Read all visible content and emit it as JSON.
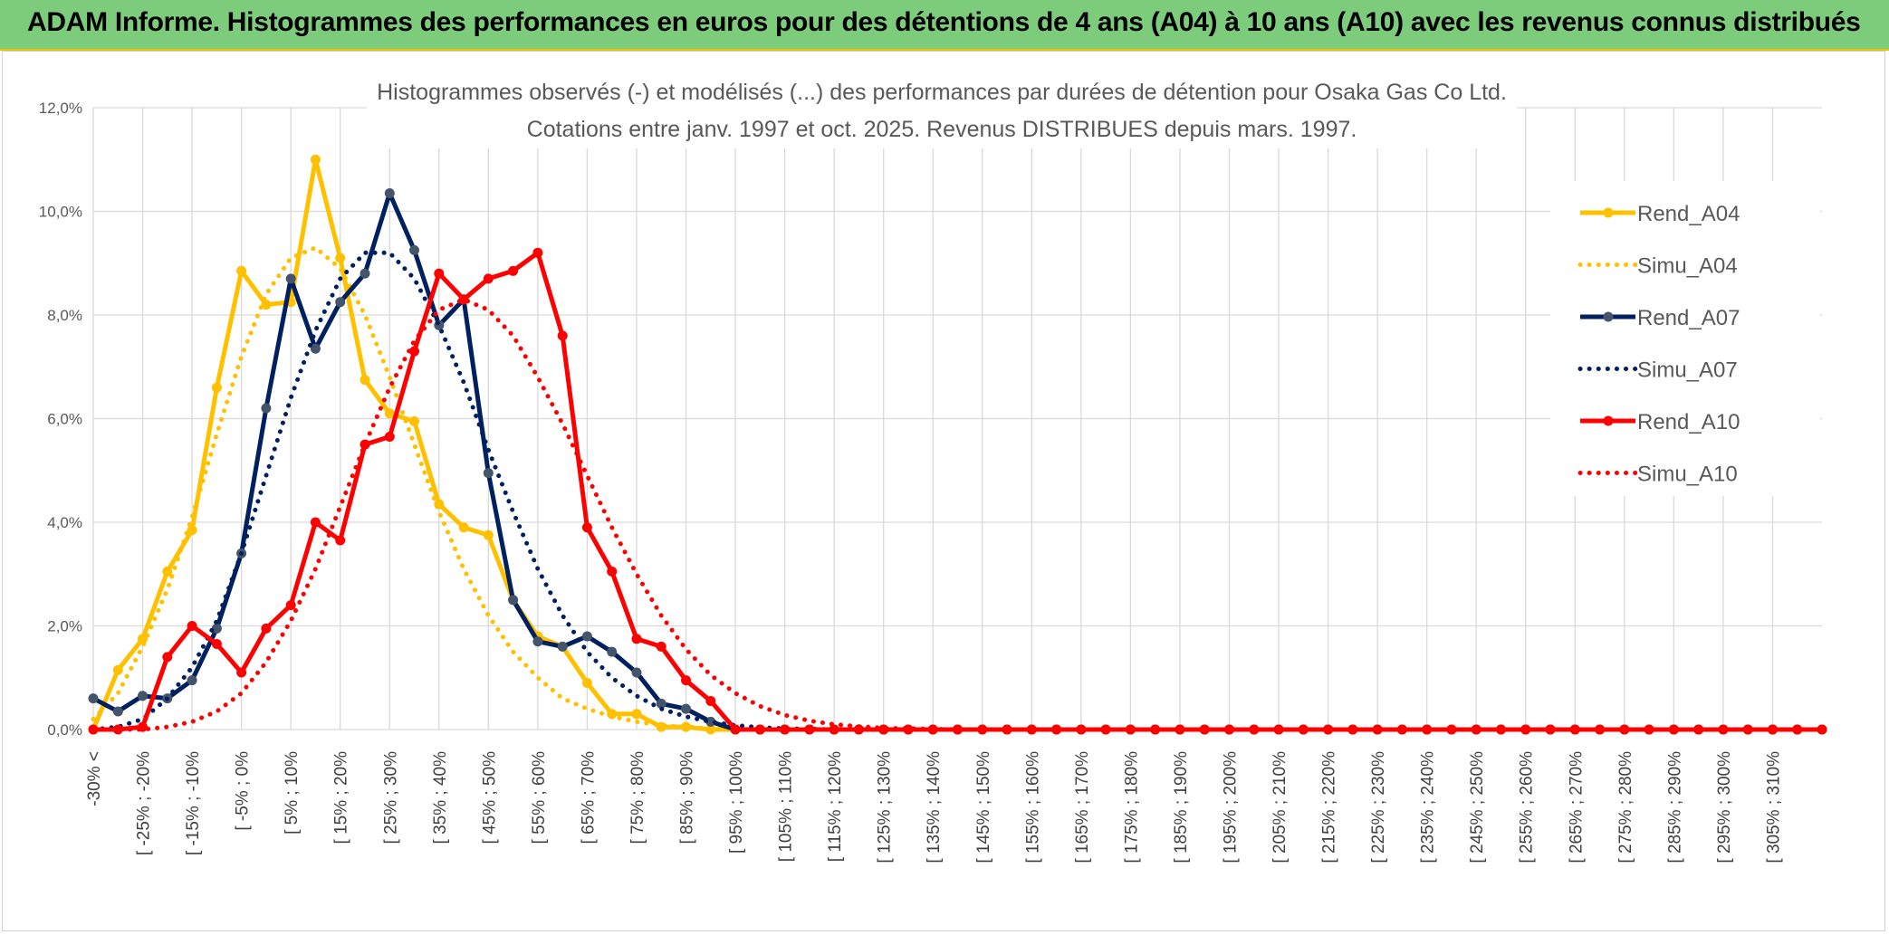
{
  "banner": {
    "title": "ADAM Informe. Histogrammes des performances en euros pour des détentions de 4 ans (A04) à 10 ans (A10) avec les revenus connus distribués"
  },
  "colors": {
    "banner_bg": "#7ccc7c",
    "A04": "#ffc000",
    "A07": "#002060",
    "A10": "#ff0000"
  },
  "chart_data": {
    "type": "line",
    "title": [
      "Histogrammes observés (-) et modélisés (...) des performances par durées de détention pour Osaka Gas Co Ltd.",
      "Cotations entre janv. 1997 et oct. 2025. Revenus DISTRIBUES depuis mars. 1997."
    ],
    "xlabel": "",
    "ylabel": "",
    "ylim": [
      0,
      12
    ],
    "y_ticks": [
      "0,0%",
      "2,0%",
      "4,0%",
      "6,0%",
      "8,0%",
      "10,0%",
      "12,0%"
    ],
    "grid": true,
    "legend_position": "right",
    "x_tick_labels": [
      "-30% <",
      "[ -25% ; -20%",
      "[ -15% ; -10%",
      "[ -5% ; 0%",
      "[ 5% ; 10%",
      "[ 15% ; 20%",
      "[ 25% ; 30%",
      "[ 35% ; 40%",
      "[ 45% ; 50%",
      "[ 55% ; 60%",
      "[ 65% ; 70%",
      "[ 75% ; 80%",
      "[ 85% ; 90%",
      "[ 95% ; 100%",
      "[ 105% ; 110%",
      "[ 115% ; 120%",
      "[ 125% ; 130%",
      "[ 135% ; 140%",
      "[ 145% ; 150%",
      "[ 155% ; 160%",
      "[ 165% ; 170%",
      "[ 175% ; 180%",
      "[ 185% ; 190%",
      "[ 195% ; 200%",
      "[ 205% ; 210%",
      "[ 215% ; 220%",
      "[ 225% ; 230%",
      "[ 235% ; 240%",
      "[ 245% ; 250%",
      "[ 255% ; 260%",
      "[ 265% ; 270%",
      "[ 275% ; 280%",
      "[ 285% ; 290%",
      "[ 295% ; 300%",
      "[ 305% ; 310%"
    ],
    "n_points": 71,
    "series": [
      {
        "name": "Rend_A04",
        "color": "#ffc000",
        "style": "solid",
        "markers": true,
        "values": [
          0.0,
          1.15,
          1.75,
          3.05,
          3.85,
          6.6,
          8.85,
          8.2,
          8.25,
          11.0,
          9.1,
          6.75,
          6.1,
          5.95,
          4.35,
          3.9,
          3.75,
          2.5,
          1.8,
          1.6,
          0.9,
          0.3,
          0.3,
          0.05,
          0.05,
          0.0,
          0.0,
          0.0,
          0.0,
          0.0,
          0.0,
          0.0,
          0.0,
          0.0,
          0.0,
          0.0,
          0.0,
          0.0,
          0.0,
          0.0,
          0.0,
          0.0,
          0.0,
          0.0,
          0.0,
          0.0,
          0.0,
          0.0,
          0.0,
          0.0,
          0.0,
          0.0,
          0.0,
          0.0,
          0.0,
          0.0,
          0.0,
          0.0,
          0.0,
          0.0,
          0.0,
          0.0,
          0.0,
          0.0,
          0.0,
          0.0,
          0.0,
          0.0,
          0.0,
          0.0,
          0.0
        ]
      },
      {
        "name": "Simu_A04",
        "color": "#ffc000",
        "style": "dotted",
        "markers": false,
        "values": [
          0.2,
          0.7,
          1.6,
          2.7,
          4.1,
          5.7,
          7.2,
          8.4,
          9.1,
          9.3,
          8.9,
          8.0,
          6.8,
          5.5,
          4.2,
          3.1,
          2.2,
          1.5,
          1.0,
          0.6,
          0.4,
          0.25,
          0.15,
          0.08,
          0.05,
          0.02,
          0.01,
          0.0,
          0.0,
          0.0,
          0.0,
          0.0,
          0.0,
          0.0,
          0.0,
          0.0,
          0.0,
          0.0,
          0.0,
          0.0,
          0.0,
          0.0,
          0.0,
          0.0,
          0.0,
          0.0,
          0.0,
          0.0,
          0.0,
          0.0,
          0.0,
          0.0,
          0.0,
          0.0,
          0.0,
          0.0,
          0.0,
          0.0,
          0.0,
          0.0,
          0.0,
          0.0,
          0.0,
          0.0,
          0.0,
          0.0,
          0.0,
          0.0,
          0.0,
          0.0,
          0.0
        ]
      },
      {
        "name": "Rend_A07",
        "color": "#002060",
        "style": "solid",
        "markers": true,
        "values": [
          0.6,
          0.35,
          0.65,
          0.6,
          0.95,
          1.95,
          3.4,
          6.2,
          8.7,
          7.35,
          8.25,
          8.8,
          10.35,
          9.25,
          7.8,
          8.3,
          4.95,
          2.5,
          1.7,
          1.6,
          1.8,
          1.5,
          1.1,
          0.5,
          0.4,
          0.15,
          0.0,
          0.0,
          0.0,
          0.0,
          0.0,
          0.0,
          0.0,
          0.0,
          0.0,
          0.0,
          0.0,
          0.0,
          0.0,
          0.0,
          0.0,
          0.0,
          0.0,
          0.0,
          0.0,
          0.0,
          0.0,
          0.0,
          0.0,
          0.0,
          0.0,
          0.0,
          0.0,
          0.0,
          0.0,
          0.0,
          0.0,
          0.0,
          0.0,
          0.0,
          0.0,
          0.0,
          0.0,
          0.0,
          0.0,
          0.0,
          0.0,
          0.0,
          0.0,
          0.0,
          0.0
        ]
      },
      {
        "name": "Simu_A07",
        "color": "#002060",
        "style": "dotted",
        "markers": false,
        "values": [
          0.0,
          0.05,
          0.2,
          0.6,
          1.2,
          2.1,
          3.4,
          4.9,
          6.4,
          7.7,
          8.7,
          9.2,
          9.2,
          8.7,
          7.8,
          6.7,
          5.4,
          4.2,
          3.1,
          2.2,
          1.5,
          1.0,
          0.65,
          0.4,
          0.25,
          0.15,
          0.08,
          0.04,
          0.02,
          0.01,
          0.0,
          0.0,
          0.0,
          0.0,
          0.0,
          0.0,
          0.0,
          0.0,
          0.0,
          0.0,
          0.0,
          0.0,
          0.0,
          0.0,
          0.0,
          0.0,
          0.0,
          0.0,
          0.0,
          0.0,
          0.0,
          0.0,
          0.0,
          0.0,
          0.0,
          0.0,
          0.0,
          0.0,
          0.0,
          0.0,
          0.0,
          0.0,
          0.0,
          0.0,
          0.0,
          0.0,
          0.0,
          0.0,
          0.0,
          0.0,
          0.0
        ]
      },
      {
        "name": "Rend_A10",
        "color": "#ff0000",
        "style": "solid",
        "markers": true,
        "values": [
          0.0,
          0.0,
          0.05,
          1.4,
          2.0,
          1.65,
          1.1,
          1.95,
          2.4,
          4.0,
          3.65,
          5.5,
          5.65,
          7.3,
          8.8,
          8.3,
          8.7,
          8.85,
          9.2,
          7.6,
          3.9,
          3.05,
          1.75,
          1.6,
          0.95,
          0.55,
          0.0,
          0.0,
          0.0,
          0.0,
          0.0,
          0.0,
          0.0,
          0.0,
          0.0,
          0.0,
          0.0,
          0.0,
          0.0,
          0.0,
          0.0,
          0.0,
          0.0,
          0.0,
          0.0,
          0.0,
          0.0,
          0.0,
          0.0,
          0.0,
          0.0,
          0.0,
          0.0,
          0.0,
          0.0,
          0.0,
          0.0,
          0.0,
          0.0,
          0.0,
          0.0,
          0.0,
          0.0,
          0.0,
          0.0,
          0.0,
          0.0,
          0.0,
          0.0,
          0.0,
          0.0
        ]
      },
      {
        "name": "Simu_A10",
        "color": "#ff0000",
        "style": "dotted",
        "markers": false,
        "values": [
          0.0,
          0.0,
          0.0,
          0.05,
          0.15,
          0.35,
          0.7,
          1.3,
          2.1,
          3.1,
          4.3,
          5.5,
          6.6,
          7.5,
          8.1,
          8.3,
          8.1,
          7.6,
          6.8,
          5.9,
          4.9,
          3.9,
          3.0,
          2.2,
          1.55,
          1.05,
          0.7,
          0.45,
          0.28,
          0.17,
          0.1,
          0.06,
          0.03,
          0.02,
          0.01,
          0.0,
          0.0,
          0.0,
          0.0,
          0.0,
          0.0,
          0.0,
          0.0,
          0.0,
          0.0,
          0.0,
          0.0,
          0.0,
          0.0,
          0.0,
          0.0,
          0.0,
          0.0,
          0.0,
          0.0,
          0.0,
          0.0,
          0.0,
          0.0,
          0.0,
          0.0,
          0.0,
          0.0,
          0.0,
          0.0,
          0.0,
          0.0,
          0.0,
          0.0,
          0.0,
          0.0
        ]
      }
    ]
  }
}
